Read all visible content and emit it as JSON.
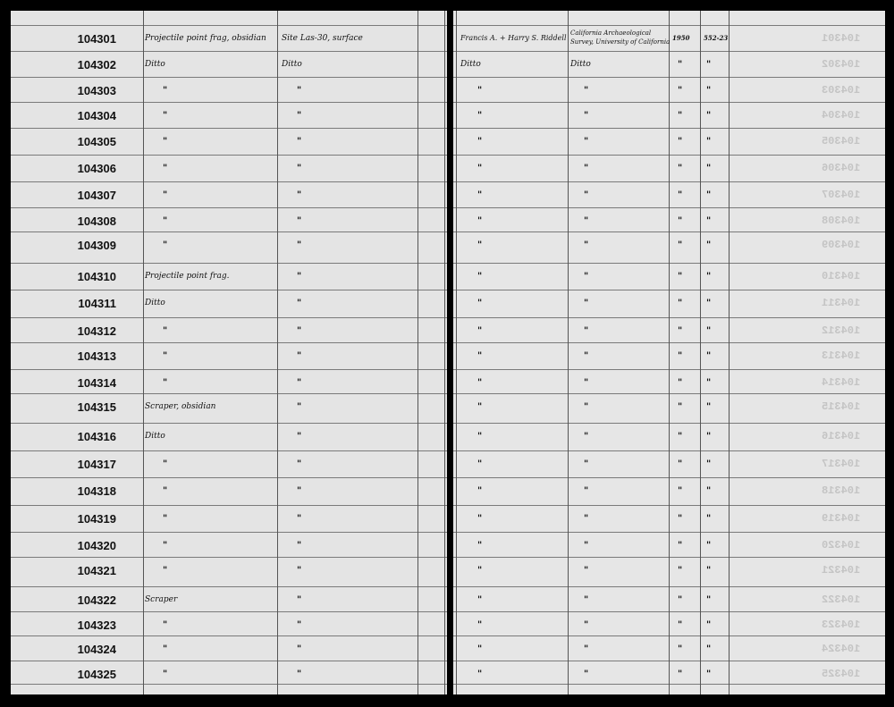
{
  "ledger": {
    "rows": [
      {
        "number": "104301",
        "description": "Projectile point frag, obsidian",
        "locality": "Site Las-30, surface",
        "collector": "Francis A. + Harry S. Riddell",
        "donor": "California Archaeological Survey, University of California",
        "year": "1950",
        "accession": "552-23"
      },
      {
        "number": "104302",
        "description": "Ditto",
        "locality": "Ditto",
        "collector": "Ditto",
        "donor": "Ditto",
        "year": "\"",
        "accession": "\""
      },
      {
        "number": "104303",
        "description": "\"",
        "locality": "\"",
        "collector": "\"",
        "donor": "\"",
        "year": "\"",
        "accession": "\""
      },
      {
        "number": "104304",
        "description": "\"",
        "locality": "\"",
        "collector": "\"",
        "donor": "\"",
        "year": "\"",
        "accession": "\""
      },
      {
        "number": "104305",
        "description": "\"",
        "locality": "\"",
        "collector": "\"",
        "donor": "\"",
        "year": "\"",
        "accession": "\""
      },
      {
        "number": "104306",
        "description": "\"",
        "locality": "\"",
        "collector": "\"",
        "donor": "\"",
        "year": "\"",
        "accession": "\""
      },
      {
        "number": "104307",
        "description": "\"",
        "locality": "\"",
        "collector": "\"",
        "donor": "\"",
        "year": "\"",
        "accession": "\""
      },
      {
        "number": "104308",
        "description": "\"",
        "locality": "\"",
        "collector": "\"",
        "donor": "\"",
        "year": "\"",
        "accession": "\""
      },
      {
        "number": "104309",
        "description": "\"",
        "locality": "\"",
        "collector": "\"",
        "donor": "\"",
        "year": "\"",
        "accession": "\""
      },
      {
        "number": "104310",
        "description": "Projectile point frag.",
        "locality": "\"",
        "collector": "\"",
        "donor": "\"",
        "year": "\"",
        "accession": "\""
      },
      {
        "number": "104311",
        "description": "Ditto",
        "locality": "\"",
        "collector": "\"",
        "donor": "\"",
        "year": "\"",
        "accession": "\""
      },
      {
        "number": "104312",
        "description": "\"",
        "locality": "\"",
        "collector": "\"",
        "donor": "\"",
        "year": "\"",
        "accession": "\""
      },
      {
        "number": "104313",
        "description": "\"",
        "locality": "\"",
        "collector": "\"",
        "donor": "\"",
        "year": "\"",
        "accession": "\""
      },
      {
        "number": "104314",
        "description": "\"",
        "locality": "\"",
        "collector": "\"",
        "donor": "\"",
        "year": "\"",
        "accession": "\""
      },
      {
        "number": "104315",
        "description": "Scraper, obsidian",
        "locality": "\"",
        "collector": "\"",
        "donor": "\"",
        "year": "\"",
        "accession": "\""
      },
      {
        "number": "104316",
        "description": "Ditto",
        "locality": "\"",
        "collector": "\"",
        "donor": "\"",
        "year": "\"",
        "accession": "\""
      },
      {
        "number": "104317",
        "description": "\"",
        "locality": "\"",
        "collector": "\"",
        "donor": "\"",
        "year": "\"",
        "accession": "\""
      },
      {
        "number": "104318",
        "description": "\"",
        "locality": "\"",
        "collector": "\"",
        "donor": "\"",
        "year": "\"",
        "accession": "\""
      },
      {
        "number": "104319",
        "description": "\"",
        "locality": "\"",
        "collector": "\"",
        "donor": "\"",
        "year": "\"",
        "accession": "\""
      },
      {
        "number": "104320",
        "description": "\"",
        "locality": "\"",
        "collector": "\"",
        "donor": "\"",
        "year": "\"",
        "accession": "\""
      },
      {
        "number": "104321",
        "description": "\"",
        "locality": "\"",
        "collector": "\"",
        "donor": "\"",
        "year": "\"",
        "accession": "\""
      },
      {
        "number": "104322",
        "description": "Scraper",
        "locality": "\"",
        "collector": "\"",
        "donor": "\"",
        "year": "\"",
        "accession": "\""
      },
      {
        "number": "104323",
        "description": "\"",
        "locality": "\"",
        "collector": "\"",
        "donor": "\"",
        "year": "\"",
        "accession": "\""
      },
      {
        "number": "104324",
        "description": "\"",
        "locality": "\"",
        "collector": "\"",
        "donor": "\"",
        "year": "\"",
        "accession": "\""
      },
      {
        "number": "104325",
        "description": "\"",
        "locality": "\"",
        "collector": "\"",
        "donor": "\"",
        "year": "\"",
        "accession": "\""
      }
    ]
  }
}
